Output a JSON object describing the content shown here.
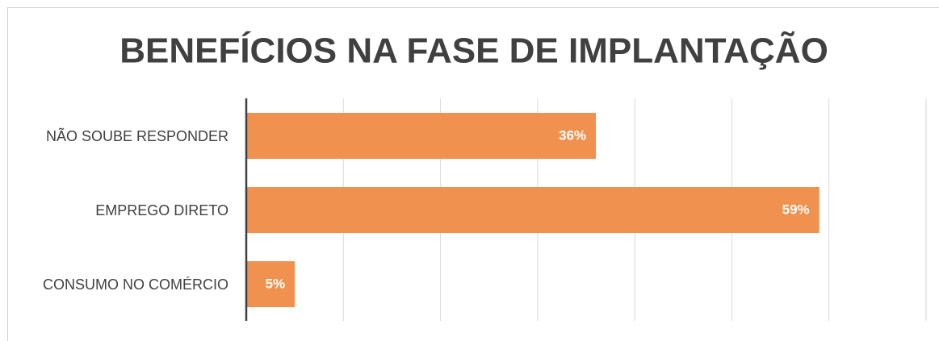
{
  "chart_data": {
    "type": "hbar",
    "title": "BENEFÍCIOS NA FASE DE IMPLANTAÇÃO",
    "categories": [
      "NÃO SOUBE RESPONDER",
      "EMPREGO DIRETO",
      "CONSUMO NO COMÉRCIO"
    ],
    "values": [
      36,
      59,
      5
    ],
    "value_labels": [
      "36%",
      "59%",
      "5%"
    ],
    "color": "#f0914f",
    "xlim": [
      0,
      70
    ],
    "xticks": [
      0,
      10,
      20,
      30,
      40,
      50,
      60,
      70
    ],
    "grid": true
  }
}
